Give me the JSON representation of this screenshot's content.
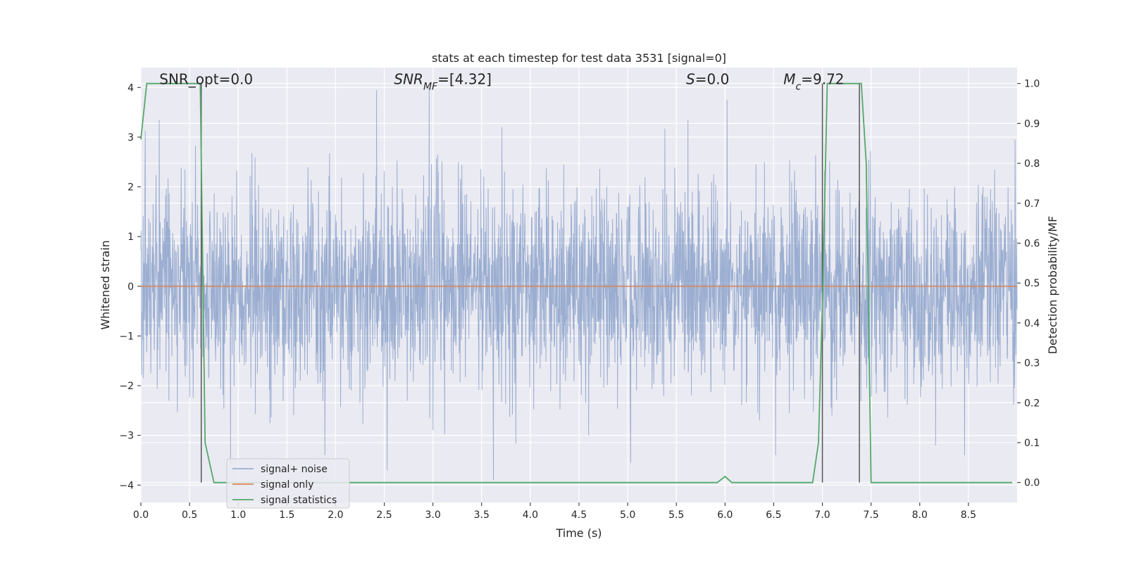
{
  "chart_data": {
    "type": "line",
    "title": "stats at each timestep for test data 3531 [signal=0]",
    "xlabel": "Time (s)",
    "ylabel": "Whitened strain",
    "y2label": "Detection probability/MF",
    "xlim": [
      0.0,
      9.0
    ],
    "ylim": [
      -4.35,
      4.4
    ],
    "y2lim": [
      -0.05,
      1.04
    ],
    "xticks": [
      "0.0",
      "0.5",
      "1.0",
      "1.5",
      "2.0",
      "2.5",
      "3.0",
      "3.5",
      "4.0",
      "4.5",
      "5.0",
      "5.5",
      "6.0",
      "6.5",
      "7.0",
      "7.5",
      "8.0",
      "8.5"
    ],
    "yticks": [
      "4",
      "3",
      "2",
      "1",
      "0",
      "−1",
      "−2",
      "−3",
      "−4"
    ],
    "y2ticks": [
      "1.0",
      "0.9",
      "0.8",
      "0.7",
      "0.6",
      "0.5",
      "0.4",
      "0.3",
      "0.2",
      "0.1",
      "0.0"
    ],
    "grid": true,
    "legend_position": "lower-left",
    "annotations": [
      {
        "text": "SNR_opt=0.0",
        "x": 0.19
      },
      {
        "text": "SNR_MF=[4.32]",
        "x": 2.6
      },
      {
        "text": "S=0.0",
        "x": 5.6
      },
      {
        "text": "M_c=9.72",
        "x": 6.6
      }
    ],
    "vertical_lines": [
      0.62,
      7.0,
      7.38
    ],
    "series": [
      {
        "name": "signal+ noise",
        "color": "#4c72b0",
        "kind": "noise",
        "approx_envelope": {
          "typical": [
            -1.7,
            1.6
          ],
          "extremes": [
            -3.9,
            4.0
          ]
        },
        "notable_peaks": [
          {
            "x": 0.19,
            "y": 3.35
          },
          {
            "x": 2.42,
            "y": 3.95
          },
          {
            "x": 2.96,
            "y": 4.0
          },
          {
            "x": 2.53,
            "y": -3.7
          },
          {
            "x": 3.62,
            "y": -3.9
          },
          {
            "x": 6.02,
            "y": 3.75
          },
          {
            "x": 0.92,
            "y": -3.6
          },
          {
            "x": 1.89,
            "y": -3.4
          },
          {
            "x": 5.03,
            "y": -3.55
          },
          {
            "x": 6.52,
            "y": -3.4
          },
          {
            "x": 8.46,
            "y": -3.4
          },
          {
            "x": 5.62,
            "y": 3.35
          },
          {
            "x": 8.98,
            "y": 2.95
          }
        ]
      },
      {
        "name": "signal only",
        "color": "#dd8452",
        "x": [
          0.0,
          9.0
        ],
        "y": [
          0.0,
          0.0
        ]
      },
      {
        "name": "signal statistics",
        "color": "#55a868",
        "axis": "right",
        "x": [
          0.0,
          0.06,
          0.1,
          0.55,
          0.61,
          0.66,
          0.75,
          5.85,
          5.92,
          6.0,
          6.07,
          6.9,
          6.96,
          7.0,
          7.05,
          7.35,
          7.4,
          7.45,
          7.5,
          8.95
        ],
        "y": [
          0.86,
          1.0,
          1.0,
          1.0,
          1.0,
          0.1,
          0.0,
          0.0,
          0.0,
          0.015,
          0.0,
          0.0,
          0.1,
          0.45,
          1.0,
          1.0,
          1.0,
          0.8,
          0.0,
          0.0
        ]
      }
    ]
  }
}
